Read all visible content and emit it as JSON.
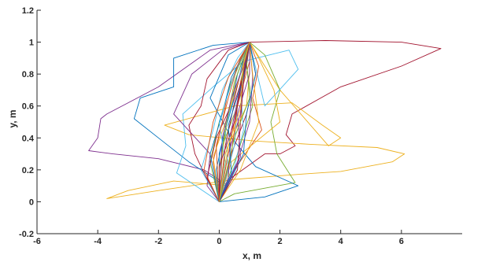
{
  "chart_data": {
    "type": "line",
    "title": "",
    "xlabel": "x, m",
    "ylabel": "y, m",
    "xlim": [
      -6,
      8
    ],
    "ylim": [
      -0.2,
      1.2
    ],
    "xticks": [
      -6,
      -4,
      -2,
      0,
      2,
      4,
      6
    ],
    "yticks": [
      -0.2,
      0,
      0.2,
      0.4,
      0.6,
      0.8,
      1,
      1.2
    ],
    "xtick_labels": [
      "-6",
      "-4",
      "-2",
      "0",
      "2",
      "4",
      "6"
    ],
    "ytick_labels": [
      "-0.2",
      "0",
      "0.2",
      "0.4",
      "0.6",
      "0.8",
      "1",
      "1.2"
    ],
    "grid": false,
    "legend": "none",
    "start_point": [
      0,
      0
    ],
    "end_point": [
      1,
      1
    ],
    "series": [
      {
        "color": "#7E2F8E",
        "x": [
          0,
          0.3,
          -0.5,
          -2.0,
          -3.5,
          -4.3,
          -4.0,
          -3.9,
          -3.7,
          -2.0,
          -0.3,
          1.0
        ],
        "y": [
          0,
          0.1,
          0.2,
          0.27,
          0.3,
          0.32,
          0.4,
          0.52,
          0.55,
          0.72,
          0.95,
          1.0
        ]
      },
      {
        "color": "#A2142F",
        "x": [
          0,
          0.4,
          1.5,
          2.0,
          2.5,
          2.2,
          2.4,
          4.0,
          6.0,
          7.3,
          6.0,
          3.5,
          1.0
        ],
        "y": [
          0,
          0.15,
          0.3,
          0.3,
          0.35,
          0.42,
          0.55,
          0.72,
          0.85,
          0.96,
          1.0,
          1.01,
          1.0
        ]
      },
      {
        "color": "#EDB120",
        "x": [
          0,
          0.3,
          -1.5,
          -3.0,
          -3.7,
          -2.0,
          0.5,
          2.5,
          4.0,
          5.7,
          6.1,
          5.2,
          3.0,
          1.2,
          -1.0,
          -1.8,
          0.5,
          2.4,
          3.4,
          4.0,
          3.6,
          2.0,
          1.0
        ],
        "y": [
          0,
          0.1,
          0.13,
          0.07,
          0.02,
          0.07,
          0.14,
          0.17,
          0.19,
          0.25,
          0.3,
          0.34,
          0.36,
          0.38,
          0.42,
          0.48,
          0.6,
          0.62,
          0.48,
          0.4,
          0.35,
          0.7,
          1.0
        ]
      },
      {
        "color": "#0072BD",
        "x": [
          0,
          0.2,
          -1.0,
          -2.0,
          -2.8,
          -2.6,
          -1.5,
          -1.5,
          -0.2,
          1.0
        ],
        "y": [
          0,
          0.1,
          0.25,
          0.4,
          0.52,
          0.65,
          0.72,
          0.9,
          0.98,
          1.0
        ]
      },
      {
        "color": "#4DBEEE",
        "x": [
          0,
          -1.4,
          -1.1,
          -1.2,
          -0.2,
          0.8,
          2.3,
          2.6,
          1.5,
          1.0
        ],
        "y": [
          0,
          0.18,
          0.35,
          0.55,
          0.72,
          0.88,
          0.95,
          0.83,
          0.6,
          1.0
        ]
      },
      {
        "color": "#77AC30",
        "x": [
          0,
          0.5,
          2.5,
          1.9,
          1.7,
          2.0,
          1.5,
          1.0
        ],
        "y": [
          0,
          0.05,
          0.12,
          0.3,
          0.5,
          0.7,
          0.92,
          1.0
        ]
      },
      {
        "color": "#7E2F8E",
        "x": [
          0,
          -0.4,
          -0.3,
          -1.5,
          -0.9,
          0.1,
          1.0
        ],
        "y": [
          0,
          0.1,
          0.3,
          0.55,
          0.8,
          0.95,
          1.0
        ]
      },
      {
        "color": "#D95319",
        "x": [
          0,
          0.5,
          1.4,
          1.1,
          1.3,
          1.0
        ],
        "y": [
          0,
          0.2,
          0.45,
          0.65,
          0.85,
          1.0
        ]
      },
      {
        "color": "#0072BD",
        "x": [
          0,
          1.5,
          2.6,
          1.2,
          0.4,
          -0.3,
          0.3,
          1.0
        ],
        "y": [
          0,
          0.03,
          0.1,
          0.22,
          0.4,
          0.65,
          0.92,
          1.0
        ]
      },
      {
        "color": "#A2142F",
        "x": [
          0,
          -0.3,
          -0.8,
          -1.0,
          -0.6,
          -0.4,
          0.3,
          1.0
        ],
        "y": [
          0,
          0.1,
          0.3,
          0.48,
          0.6,
          0.77,
          0.95,
          1.0
        ]
      },
      {
        "color": "#EDB120",
        "x": [
          0,
          0.4,
          2.0,
          1.8,
          1.3,
          1.0
        ],
        "y": [
          0,
          0.25,
          0.5,
          0.7,
          0.9,
          1.0
        ]
      },
      {
        "color": "#4DBEEE",
        "x": [
          0,
          -0.6,
          -0.2,
          0.1,
          0.6,
          1.0
        ],
        "y": [
          0,
          0.2,
          0.45,
          0.7,
          0.9,
          1.0
        ]
      },
      {
        "color": "#77AC30",
        "x": [
          0,
          0.6,
          1.1,
          0.9,
          1.0
        ],
        "y": [
          0,
          0.3,
          0.6,
          0.85,
          1.0
        ]
      },
      {
        "color": "#D95319",
        "x": [
          0,
          -0.2,
          0.1,
          0.3,
          0.7,
          1.0
        ],
        "y": [
          0,
          0.25,
          0.5,
          0.7,
          0.9,
          1.0
        ]
      },
      {
        "color": "#7E2F8E",
        "x": [
          0,
          0.3,
          0.7,
          0.8,
          1.0
        ],
        "y": [
          0,
          0.3,
          0.55,
          0.8,
          1.0
        ]
      },
      {
        "color": "#0072BD",
        "x": [
          0,
          -0.1,
          0.2,
          0.5,
          0.8,
          1.0
        ],
        "y": [
          0,
          0.2,
          0.45,
          0.65,
          0.9,
          1.0
        ]
      },
      {
        "color": "#A2142F",
        "x": [
          0,
          0.4,
          0.9,
          1.2,
          1.0
        ],
        "y": [
          0,
          0.3,
          0.55,
          0.8,
          1.0
        ]
      },
      {
        "color": "#EDB120",
        "x": [
          0,
          0.1,
          0.3,
          0.6,
          1.0
        ],
        "y": [
          0,
          0.3,
          0.55,
          0.8,
          1.0
        ]
      },
      {
        "color": "#4DBEEE",
        "x": [
          0,
          0.5,
          0.6,
          0.9,
          1.0
        ],
        "y": [
          0,
          0.35,
          0.6,
          0.85,
          1.0
        ]
      },
      {
        "color": "#77AC30",
        "x": [
          0,
          -0.3,
          0.0,
          0.4,
          1.0
        ],
        "y": [
          0,
          0.25,
          0.5,
          0.75,
          1.0
        ]
      },
      {
        "color": "#D95319",
        "x": [
          0,
          0.2,
          0.5,
          0.7,
          1.0
        ],
        "y": [
          0,
          0.2,
          0.5,
          0.75,
          1.0
        ]
      },
      {
        "color": "#7E2F8E",
        "x": [
          0,
          0.6,
          1.0,
          1.1,
          1.0
        ],
        "y": [
          0,
          0.25,
          0.5,
          0.78,
          1.0
        ]
      },
      {
        "color": "#0072BD",
        "x": [
          0,
          0.0,
          0.4,
          0.6,
          1.0
        ],
        "y": [
          0,
          0.3,
          0.6,
          0.8,
          1.0
        ]
      },
      {
        "color": "#A2142F",
        "x": [
          0,
          -0.4,
          -0.1,
          0.5,
          0.8,
          1.0
        ],
        "y": [
          0,
          0.15,
          0.4,
          0.65,
          0.88,
          1.0
        ]
      },
      {
        "color": "#EDB120",
        "x": [
          0,
          0.7,
          1.3,
          1.1,
          1.0
        ],
        "y": [
          0,
          0.2,
          0.5,
          0.8,
          1.0
        ]
      },
      {
        "color": "#4DBEEE",
        "x": [
          0,
          0.3,
          0.2,
          0.6,
          1.0
        ],
        "y": [
          0,
          0.2,
          0.45,
          0.75,
          1.0
        ]
      },
      {
        "color": "#77AC30",
        "x": [
          0,
          0.1,
          0.6,
          0.8,
          1.0
        ],
        "y": [
          0,
          0.35,
          0.6,
          0.85,
          1.0
        ]
      },
      {
        "color": "#D95319",
        "x": [
          0,
          -0.5,
          -0.2,
          0.3,
          1.0
        ],
        "y": [
          0,
          0.2,
          0.5,
          0.78,
          1.0
        ]
      },
      {
        "color": "#7E2F8E",
        "x": [
          0,
          0.3,
          0.4,
          0.7,
          1.0
        ],
        "y": [
          0,
          0.15,
          0.45,
          0.72,
          1.0
        ]
      },
      {
        "color": "#0072BD",
        "x": [
          0,
          0.8,
          0.9,
          1.2,
          1.0
        ],
        "y": [
          0,
          0.3,
          0.55,
          0.8,
          1.0
        ]
      },
      {
        "color": "#A2142F",
        "x": [
          0,
          0.2,
          0.5,
          0.9,
          1.0
        ],
        "y": [
          0,
          0.35,
          0.62,
          0.85,
          1.0
        ]
      },
      {
        "color": "#EDB120",
        "x": [
          0,
          -0.2,
          0.3,
          0.7,
          1.0
        ],
        "y": [
          0,
          0.28,
          0.55,
          0.8,
          1.0
        ]
      },
      {
        "color": "#4DBEEE",
        "x": [
          0,
          0.5,
          0.8,
          0.7,
          1.0
        ],
        "y": [
          0,
          0.22,
          0.45,
          0.7,
          1.0
        ]
      },
      {
        "color": "#77AC30",
        "x": [
          0,
          0.0,
          0.2,
          0.5,
          1.0
        ],
        "y": [
          0,
          0.2,
          0.45,
          0.75,
          1.0
        ]
      },
      {
        "color": "#D95319",
        "x": [
          0,
          0.4,
          0.6,
          1.0,
          1.0
        ],
        "y": [
          0,
          0.3,
          0.6,
          0.88,
          1.0
        ]
      },
      {
        "color": "#7E2F8E",
        "x": [
          0,
          0.1,
          0.4,
          0.9,
          1.0
        ],
        "y": [
          0,
          0.4,
          0.65,
          0.9,
          1.0
        ]
      },
      {
        "color": "#0072BD",
        "x": [
          0,
          -0.3,
          0.1,
          0.4,
          1.0
        ],
        "y": [
          0,
          0.3,
          0.55,
          0.78,
          1.0
        ]
      },
      {
        "color": "#A2142F",
        "x": [
          0,
          0.6,
          0.7,
          0.8,
          1.0
        ],
        "y": [
          0,
          0.2,
          0.5,
          0.75,
          1.0
        ]
      },
      {
        "color": "#EDB120",
        "x": [
          0,
          0.3,
          0.9,
          1.0,
          1.0
        ],
        "y": [
          0,
          0.35,
          0.6,
          0.82,
          1.0
        ]
      },
      {
        "color": "#4DBEEE",
        "x": [
          0,
          0.2,
          0.0,
          0.5,
          1.0
        ],
        "y": [
          0,
          0.25,
          0.5,
          0.8,
          1.0
        ]
      },
      {
        "color": "#77AC30",
        "x": [
          0,
          0.5,
          1.0,
          0.9,
          1.0
        ],
        "y": [
          0,
          0.4,
          0.65,
          0.88,
          1.0
        ]
      },
      {
        "color": "#D95319",
        "x": [
          0,
          -0.1,
          0.3,
          0.6,
          1.0
        ],
        "y": [
          0,
          0.35,
          0.65,
          0.85,
          1.0
        ]
      },
      {
        "color": "#7E2F8E",
        "x": [
          0,
          0.7,
          0.6,
          1.0,
          1.0
        ],
        "y": [
          0,
          0.28,
          0.55,
          0.8,
          1.0
        ]
      },
      {
        "color": "#0072BD",
        "x": [
          0,
          0.4,
          0.3,
          0.8,
          1.0
        ],
        "y": [
          0,
          0.18,
          0.48,
          0.78,
          1.0
        ]
      },
      {
        "color": "#A2142F",
        "x": [
          0,
          0.0,
          0.5,
          0.7,
          1.0
        ],
        "y": [
          0,
          0.22,
          0.5,
          0.7,
          1.0
        ]
      },
      {
        "color": "#EDB120",
        "x": [
          0,
          0.2,
          0.7,
          0.8,
          1.0
        ],
        "y": [
          0,
          0.3,
          0.58,
          0.86,
          1.0
        ]
      }
    ]
  }
}
